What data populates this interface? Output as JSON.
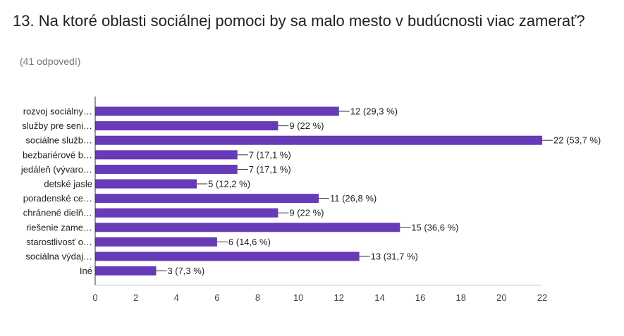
{
  "question": {
    "title": "13. Na ktoré oblasti sociálnej pomoci by sa malo mesto v budúcnosti viac zamerať?",
    "responses": "(41 odpovedí)"
  },
  "colors": {
    "bar": "#673ab7",
    "axis": "#333333",
    "gridline": "#cccccc"
  },
  "chart_data": {
    "type": "bar",
    "orientation": "horizontal",
    "categories": [
      "rozvoj sociálny…",
      "služby pre seni…",
      "sociálne služb…",
      "bezbariérové b…",
      "jedáleň (vývaro…",
      "detské jasle",
      "poradenské ce…",
      "chránené dielň…",
      "riešenie zame…",
      "starostlivosť o…",
      "sociálna výdaj…",
      "Iné"
    ],
    "values": [
      12,
      9,
      22,
      7,
      7,
      5,
      11,
      9,
      15,
      6,
      13,
      3
    ],
    "value_labels": [
      "12 (29,3 %)",
      "9 (22 %)",
      "22 (53,7 %)",
      "7 (17,1 %)",
      "7 (17,1 %)",
      "5 (12,2 %)",
      "11 (26,8 %)",
      "9 (22 %)",
      "15 (36,6 %)",
      "6 (14,6 %)",
      "13 (31,7 %)",
      "3 (7,3 %)"
    ],
    "xlim": [
      0,
      22
    ],
    "xticks": [
      0,
      2,
      4,
      6,
      8,
      10,
      12,
      14,
      16,
      18,
      20,
      22
    ],
    "title": "",
    "xlabel": "",
    "ylabel": "",
    "grid": false
  }
}
